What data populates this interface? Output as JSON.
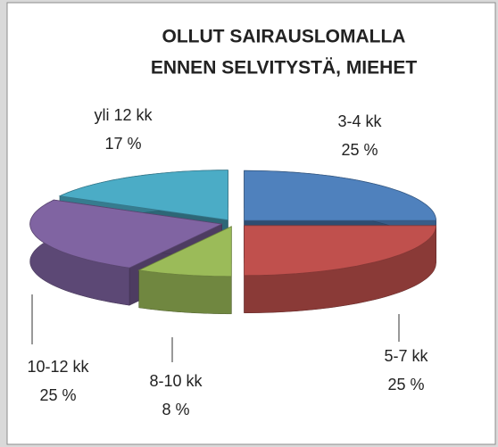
{
  "chart_data": {
    "type": "pie3d",
    "title": [
      "OLLUT SAIRAUSLOMALLA",
      "ENNEN SELVITYSTÄ, MIEHET"
    ],
    "categories": [
      "3-4 kk",
      "5-7 kk",
      "8-10 kk",
      "10-12 kk",
      "yli 12 kk"
    ],
    "values": [
      25,
      25,
      8,
      25,
      17
    ],
    "value_labels": [
      "25 %",
      "25 %",
      "8 %",
      "25 %",
      "17 %"
    ],
    "colors": [
      "#4f81bd",
      "#c0504d",
      "#9bbb59",
      "#8064a2",
      "#4bacc6"
    ]
  }
}
